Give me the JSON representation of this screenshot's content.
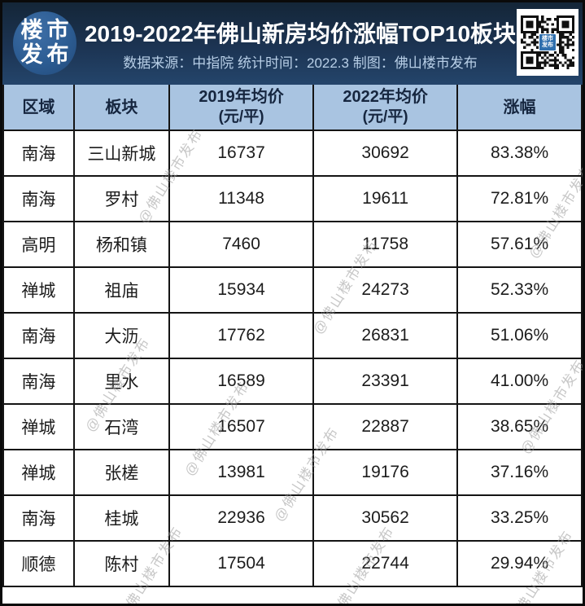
{
  "header": {
    "logo": {
      "line1": "楼市",
      "line2": "发布"
    },
    "title": "2019-2022年佛山新房均价涨幅TOP10板块",
    "subtitle": "数据来源：中指院 统计时间：2022.3 制图：佛山楼市发布",
    "qr_center": {
      "line1": "楼市",
      "line2": "发布"
    }
  },
  "table": {
    "columns": [
      {
        "label": "区域",
        "sub": ""
      },
      {
        "label": "板块",
        "sub": ""
      },
      {
        "label": "2019年均价",
        "sub": "(元/平)"
      },
      {
        "label": "2022年均价",
        "sub": "(元/平)"
      },
      {
        "label": "涨幅",
        "sub": ""
      }
    ]
  },
  "chart_data": {
    "type": "table",
    "title": "2019-2022年佛山新房均价涨幅TOP10板块",
    "subtitle": "数据来源：中指院 统计时间：2022.3 制图：佛山楼市发布",
    "columns": [
      "区域",
      "板块",
      "2019年均价(元/平)",
      "2022年均价(元/平)",
      "涨幅"
    ],
    "rows": [
      [
        "南海",
        "三山新城",
        16737,
        30692,
        "83.38%"
      ],
      [
        "南海",
        "罗村",
        11348,
        19611,
        "72.81%"
      ],
      [
        "高明",
        "杨和镇",
        7460,
        11758,
        "57.61%"
      ],
      [
        "禅城",
        "祖庙",
        15934,
        24273,
        "52.33%"
      ],
      [
        "南海",
        "大沥",
        17762,
        26831,
        "51.06%"
      ],
      [
        "南海",
        "里水",
        16589,
        23391,
        "41.00%"
      ],
      [
        "禅城",
        "石湾",
        16507,
        22887,
        "38.65%"
      ],
      [
        "禅城",
        "张槎",
        13981,
        19176,
        "37.16%"
      ],
      [
        "南海",
        "桂城",
        22936,
        30562,
        "33.25%"
      ],
      [
        "顺德",
        "陈村",
        17504,
        22744,
        "29.94%"
      ]
    ]
  },
  "watermark": {
    "text": "@佛山楼市发布"
  },
  "colors": {
    "banner_bg": "#1c3453",
    "banner_text": "#ffffff",
    "subtitle_text": "#b8cfe7",
    "logo_bg": "#2c5c92",
    "table_header_bg": "#a9c4e1",
    "table_header_text": "#16263f",
    "cell_text": "#1c1c1c",
    "border": "#141414",
    "watermark": "#9a9a9a",
    "qr_center_bg": "#2f6fae"
  }
}
